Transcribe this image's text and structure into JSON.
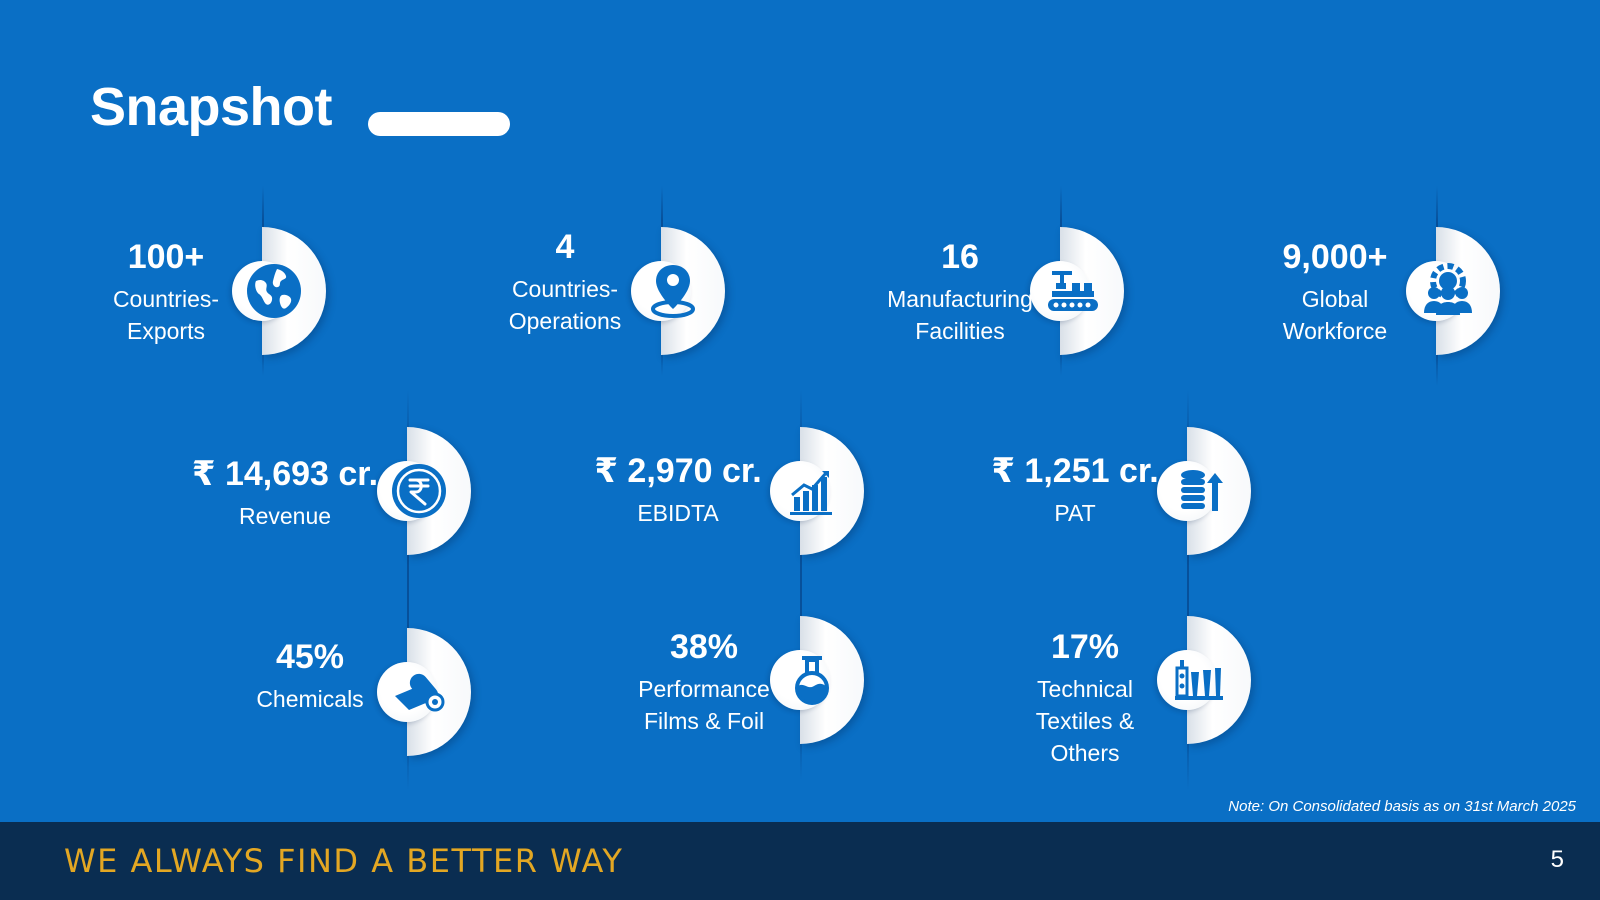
{
  "title": "Snapshot",
  "stats": [
    {
      "value": "100+",
      "label_lines": [
        "Countries-",
        "Exports"
      ],
      "icon": "globe-icon"
    },
    {
      "value": "4",
      "label_lines": [
        "Countries-",
        "Operations"
      ],
      "icon": "location-pin-icon"
    },
    {
      "value": "16",
      "label_lines": [
        "Manufacturing",
        "Facilities"
      ],
      "icon": "conveyor-robot-icon"
    },
    {
      "value": "9,000+",
      "label_lines": [
        "Global",
        "Workforce"
      ],
      "icon": "team-gear-icon"
    },
    {
      "value": "₹ 14,693 cr.",
      "label_lines": [
        "Revenue"
      ],
      "icon": "rupee-coin-icon"
    },
    {
      "value": "₹ 2,970 cr.",
      "label_lines": [
        "EBIDTA"
      ],
      "icon": "growth-chart-icon"
    },
    {
      "value": "₹ 1,251 cr.",
      "label_lines": [
        "PAT"
      ],
      "icon": "coin-stack-up-icon"
    },
    {
      "value": "45%",
      "label_lines": [
        "Chemicals"
      ],
      "icon": "film-roll-icon"
    },
    {
      "value": "38%",
      "label_lines": [
        "Performance",
        "Films & Foil"
      ],
      "icon": "flask-icon"
    },
    {
      "value": "17%",
      "label_lines": [
        "Technical",
        "Textiles &",
        "Others"
      ],
      "icon": "textile-spools-icon"
    }
  ],
  "note": "Note: On Consolidated basis as on 31st March 2025",
  "footer": {
    "tagline": "WE ALWAYS FIND A BETTER WAY",
    "page_number": "5"
  },
  "colors": {
    "background": "#0A6FC5",
    "footer": "#0A2D51",
    "tagline": "#E3A723",
    "icon": "#0A6FC5"
  }
}
